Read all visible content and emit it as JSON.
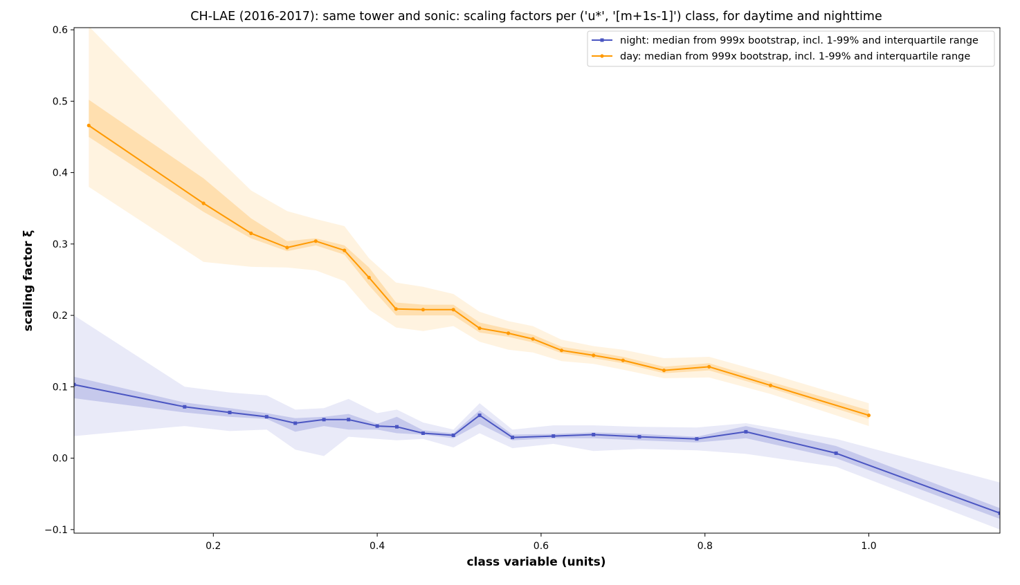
{
  "chart_data": {
    "type": "line",
    "title": "CH-LAE (2016-2017): same tower and sonic: scaling factors per ('u*', '[m+1s-1]') class, for daytime and nighttime",
    "xlabel": "class variable (units)",
    "ylabel": "scaling factor ξ",
    "xlim": [
      0.03,
      1.16
    ],
    "ylim": [
      -0.105,
      0.603
    ],
    "xticks": [
      0.2,
      0.4,
      0.6,
      0.8,
      1.0
    ],
    "xtick_labels": [
      "0.2",
      "0.4",
      "0.6",
      "0.8",
      "1.0"
    ],
    "yticks": [
      -0.1,
      0.0,
      0.1,
      0.2,
      0.3,
      0.4,
      0.5,
      0.6
    ],
    "ytick_labels": [
      "−0.1",
      "0.0",
      "0.1",
      "0.2",
      "0.3",
      "0.4",
      "0.5",
      "0.6"
    ],
    "grid": false,
    "legend_position": "top-right",
    "series": [
      {
        "name": "night: median from 999x bootstrap, incl. 1-99% and interquartile range",
        "color": "#4a55c2",
        "marker": "square",
        "x": [
          0.03,
          0.165,
          0.22,
          0.265,
          0.3,
          0.335,
          0.365,
          0.4,
          0.424,
          0.456,
          0.493,
          0.525,
          0.565,
          0.615,
          0.664,
          0.72,
          0.79,
          0.85,
          0.96,
          1.16
        ],
        "median": [
          0.103,
          0.072,
          0.064,
          0.058,
          0.049,
          0.054,
          0.054,
          0.045,
          0.044,
          0.035,
          0.032,
          0.06,
          0.029,
          0.031,
          0.033,
          0.03,
          0.027,
          0.037,
          0.007,
          -0.077
        ],
        "q25": [
          0.084,
          0.064,
          0.058,
          0.055,
          0.037,
          0.045,
          0.04,
          0.04,
          0.035,
          0.033,
          0.028,
          0.048,
          0.025,
          0.028,
          0.028,
          0.025,
          0.022,
          0.028,
          0,
          -0.085
        ],
        "q75": [
          0.114,
          0.078,
          0.07,
          0.063,
          0.056,
          0.058,
          0.062,
          0.048,
          0.058,
          0.039,
          0.035,
          0.067,
          0.033,
          0.034,
          0.036,
          0.034,
          0.03,
          0.045,
          0.017,
          -0.07
        ],
        "p01": [
          0.031,
          0.045,
          0.038,
          0.04,
          0.012,
          0.003,
          0.03,
          0.027,
          0.025,
          0.027,
          0.015,
          0.035,
          0.014,
          0.02,
          0.01,
          0.013,
          0.011,
          0.006,
          -0.012,
          -0.1
        ],
        "p99": [
          0.2,
          0.1,
          0.092,
          0.088,
          0.068,
          0.07,
          0.083,
          0.063,
          0.068,
          0.05,
          0.04,
          0.077,
          0.04,
          0.046,
          0.046,
          0.044,
          0.043,
          0.049,
          0.027,
          -0.034
        ]
      },
      {
        "name": "day: median from 999x bootstrap, incl. 1-99% and interquartile range",
        "color": "#ff9900",
        "marker": "circle",
        "x": [
          0.048,
          0.188,
          0.246,
          0.29,
          0.325,
          0.36,
          0.39,
          0.423,
          0.456,
          0.493,
          0.525,
          0.56,
          0.59,
          0.625,
          0.664,
          0.7,
          0.75,
          0.805,
          0.88,
          1.0
        ],
        "median": [
          0.466,
          0.357,
          0.315,
          0.295,
          0.304,
          0.291,
          0.253,
          0.209,
          0.208,
          0.208,
          0.182,
          0.175,
          0.167,
          0.151,
          0.144,
          0.137,
          0.123,
          0.128,
          0.102,
          0.06
        ],
        "q25": [
          0.45,
          0.345,
          0.308,
          0.29,
          0.298,
          0.285,
          0.242,
          0.2,
          0.2,
          0.2,
          0.176,
          0.17,
          0.162,
          0.147,
          0.14,
          0.133,
          0.119,
          0.123,
          0.098,
          0.055
        ],
        "q75": [
          0.502,
          0.392,
          0.336,
          0.304,
          0.308,
          0.298,
          0.267,
          0.218,
          0.215,
          0.215,
          0.19,
          0.181,
          0.173,
          0.156,
          0.149,
          0.142,
          0.128,
          0.133,
          0.107,
          0.067
        ],
        "p01": [
          0.38,
          0.275,
          0.268,
          0.267,
          0.263,
          0.248,
          0.208,
          0.183,
          0.178,
          0.185,
          0.163,
          0.152,
          0.148,
          0.136,
          0.132,
          0.124,
          0.112,
          0.113,
          0.09,
          0.045
        ],
        "p99": [
          0.605,
          0.44,
          0.375,
          0.346,
          0.335,
          0.325,
          0.28,
          0.246,
          0.24,
          0.23,
          0.205,
          0.192,
          0.185,
          0.166,
          0.157,
          0.152,
          0.14,
          0.142,
          0.118,
          0.077
        ]
      }
    ]
  }
}
